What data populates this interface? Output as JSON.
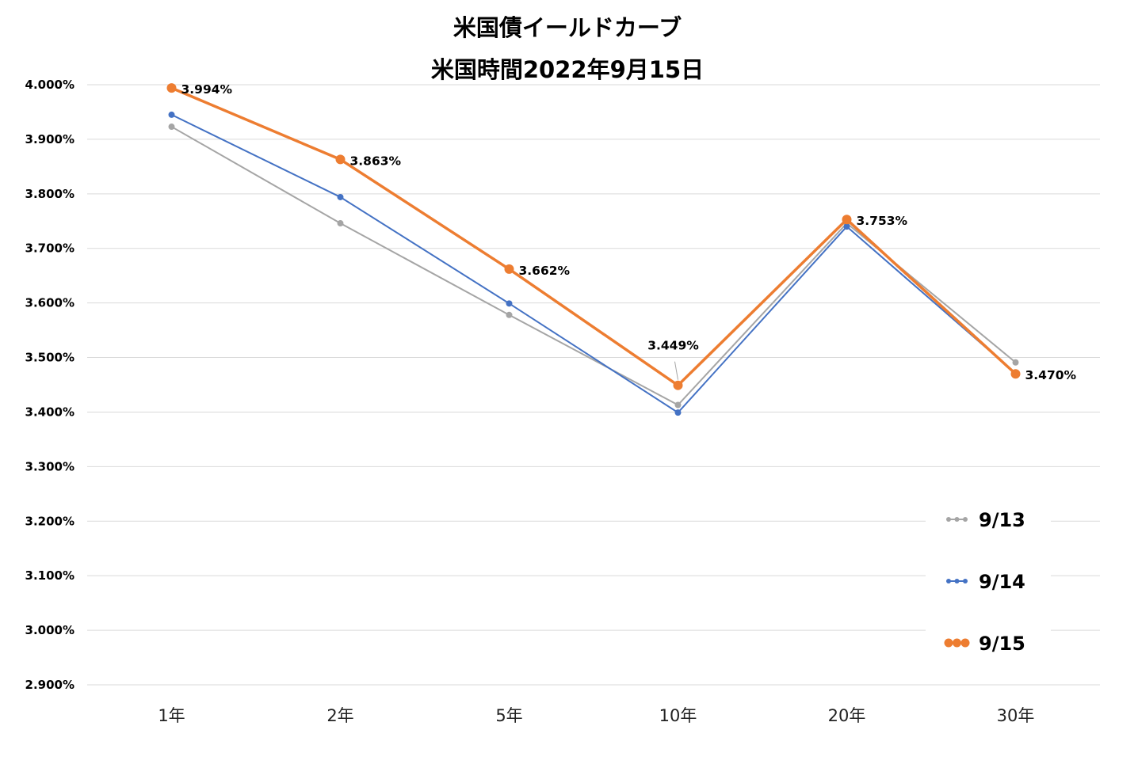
{
  "chart_data": {
    "type": "line",
    "title": "米国債イールドカーブ",
    "subtitle": "米国時間2022年9月15日",
    "categories": [
      "1年",
      "2年",
      "5年",
      "10年",
      "20年",
      "30年"
    ],
    "ylim": [
      2.9,
      4.0
    ],
    "yticks": [
      4.0,
      3.9,
      3.8,
      3.7,
      3.6,
      3.5,
      3.4,
      3.3,
      3.2,
      3.1,
      3.0,
      2.9
    ],
    "ytick_labels": [
      "4.000%",
      "3.900%",
      "3.800%",
      "3.700%",
      "3.600%",
      "3.500%",
      "3.400%",
      "3.300%",
      "3.200%",
      "3.100%",
      "3.000%",
      "2.900%"
    ],
    "grid": true,
    "legend_position": "bottom-right",
    "series": [
      {
        "name": "9/13",
        "color": "#a5a5a5",
        "values": [
          3.923,
          3.746,
          3.578,
          3.413,
          3.746,
          3.491
        ]
      },
      {
        "name": "9/14",
        "color": "#4472c4",
        "values": [
          3.945,
          3.794,
          3.599,
          3.399,
          3.74,
          3.471
        ]
      },
      {
        "name": "9/15",
        "color": "#ed7d31",
        "values": [
          3.994,
          3.863,
          3.662,
          3.449,
          3.753,
          3.47
        ],
        "data_labels": [
          "3.994%",
          "3.863%",
          "3.662%",
          "3.449%",
          "3.753%",
          "3.470%"
        ]
      }
    ]
  }
}
